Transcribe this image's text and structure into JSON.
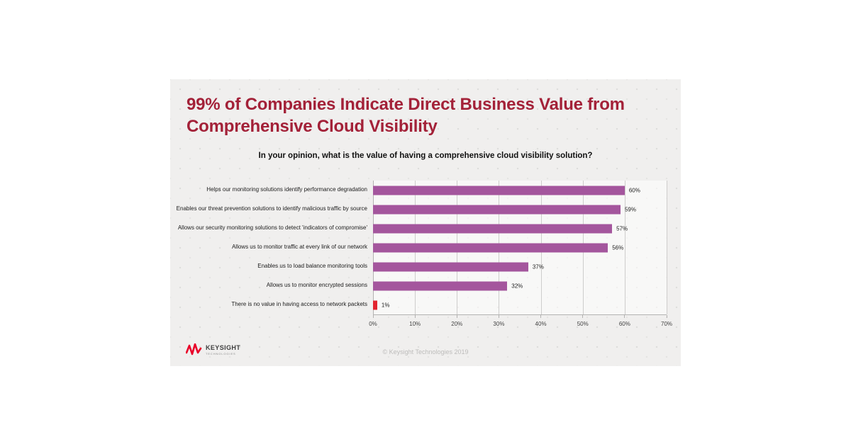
{
  "card": {
    "background": "#f0efee"
  },
  "chart_data": {
    "type": "bar",
    "orientation": "horizontal",
    "title": "99% of Companies Indicate Direct Business Value from Comprehensive Cloud Visibility",
    "title_color": "#a32138",
    "subtitle": "In your opinion, what is the value of having a comprehensive cloud visibility solution?",
    "categories": [
      "Helps our  monitoring solutions identify performance degradation",
      "Enables our threat prevention solutions to identify malicious traffic by source",
      "Allows our security monitoring solutions to detect 'indicators of compromise'",
      "Allows us to monitor traffic at every link of our network",
      "Enables us to load balance monitoring tools",
      "Allows us to monitor encrypted sessions",
      "There is no value in having access to network packets"
    ],
    "values": [
      60,
      59,
      57,
      56,
      37,
      32,
      1
    ],
    "value_labels": [
      "60%",
      "59%",
      "57%",
      "56%",
      "37%",
      "32%",
      "1%"
    ],
    "bar_colors": [
      "#a4569d",
      "#a4569d",
      "#a4569d",
      "#a4569d",
      "#a4569d",
      "#a4569d",
      "#e2242f"
    ],
    "bar_color_default": "#a4569d",
    "highlight_color": "#e2242f",
    "xlabel": "",
    "ylabel": "",
    "xlim": [
      0,
      70
    ],
    "x_ticks": [
      "0%",
      "10%",
      "20%",
      "30%",
      "40%",
      "50%",
      "60%",
      "70%"
    ],
    "grid": "vertical-only",
    "legend": "none"
  },
  "footer": {
    "logo_name": "KEYSIGHT",
    "logo_sub": "TECHNOLOGIES",
    "logo_color": "#e90029",
    "copyright": "© Keysight Technologies 2019"
  }
}
